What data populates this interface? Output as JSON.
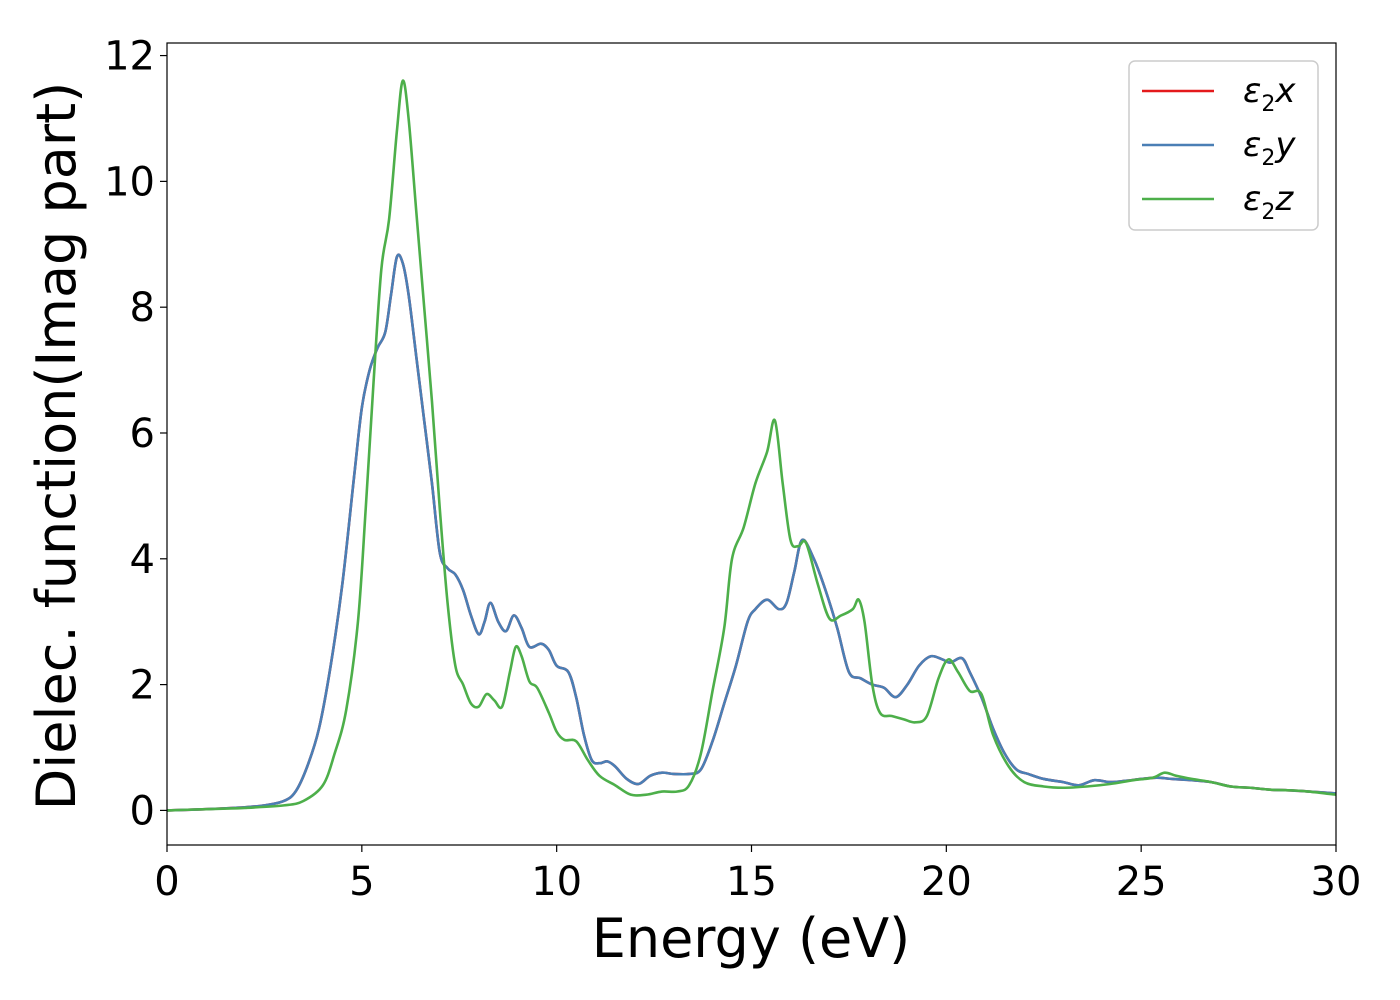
{
  "chart_data": {
    "type": "line",
    "title": "",
    "xlabel": "Energy (eV)",
    "ylabel": "Dielec. function(Imag part)",
    "xlim": [
      0,
      30
    ],
    "ylim": [
      -0.55,
      12.2
    ],
    "xticks": [
      "0",
      "5",
      "10",
      "15",
      "20",
      "25",
      "30"
    ],
    "yticks": [
      "0",
      "2",
      "4",
      "6",
      "8",
      "10",
      "12"
    ],
    "grid": false,
    "legend_position": "top-right",
    "series": [
      {
        "name": "ε2x",
        "legend": {
          "symbol": "ε",
          "sub": "2",
          "var": "x"
        },
        "color": "#e41a1c",
        "points": [
          [
            0,
            0
          ],
          [
            1,
            0.02
          ],
          [
            2,
            0.05
          ],
          [
            2.5,
            0.08
          ],
          [
            3,
            0.15
          ],
          [
            3.3,
            0.3
          ],
          [
            3.6,
            0.7
          ],
          [
            3.9,
            1.3
          ],
          [
            4.2,
            2.3
          ],
          [
            4.5,
            3.6
          ],
          [
            4.8,
            5.3
          ],
          [
            5.0,
            6.4
          ],
          [
            5.2,
            7.0
          ],
          [
            5.4,
            7.35
          ],
          [
            5.6,
            7.6
          ],
          [
            5.75,
            8.2
          ],
          [
            5.9,
            8.8
          ],
          [
            6.05,
            8.7
          ],
          [
            6.2,
            8.2
          ],
          [
            6.4,
            7.2
          ],
          [
            6.6,
            6.2
          ],
          [
            6.8,
            5.2
          ],
          [
            7.0,
            4.1
          ],
          [
            7.2,
            3.85
          ],
          [
            7.4,
            3.75
          ],
          [
            7.6,
            3.5
          ],
          [
            7.8,
            3.1
          ],
          [
            8.0,
            2.8
          ],
          [
            8.15,
            3.0
          ],
          [
            8.3,
            3.3
          ],
          [
            8.5,
            3.0
          ],
          [
            8.7,
            2.85
          ],
          [
            8.9,
            3.1
          ],
          [
            9.1,
            2.9
          ],
          [
            9.3,
            2.6
          ],
          [
            9.6,
            2.65
          ],
          [
            9.8,
            2.55
          ],
          [
            10.0,
            2.3
          ],
          [
            10.3,
            2.2
          ],
          [
            10.5,
            1.8
          ],
          [
            10.7,
            1.2
          ],
          [
            10.9,
            0.8
          ],
          [
            11.1,
            0.75
          ],
          [
            11.3,
            0.78
          ],
          [
            11.5,
            0.7
          ],
          [
            11.8,
            0.5
          ],
          [
            12.1,
            0.42
          ],
          [
            12.4,
            0.55
          ],
          [
            12.7,
            0.6
          ],
          [
            13.0,
            0.58
          ],
          [
            13.4,
            0.58
          ],
          [
            13.7,
            0.65
          ],
          [
            14.0,
            1.1
          ],
          [
            14.3,
            1.7
          ],
          [
            14.6,
            2.3
          ],
          [
            14.9,
            3.0
          ],
          [
            15.1,
            3.2
          ],
          [
            15.4,
            3.35
          ],
          [
            15.7,
            3.2
          ],
          [
            15.9,
            3.3
          ],
          [
            16.1,
            3.8
          ],
          [
            16.3,
            4.3
          ],
          [
            16.6,
            4.0
          ],
          [
            16.9,
            3.5
          ],
          [
            17.2,
            2.9
          ],
          [
            17.5,
            2.2
          ],
          [
            17.8,
            2.1
          ],
          [
            18.1,
            2.0
          ],
          [
            18.4,
            1.95
          ],
          [
            18.7,
            1.8
          ],
          [
            19.0,
            2.0
          ],
          [
            19.3,
            2.3
          ],
          [
            19.6,
            2.45
          ],
          [
            19.9,
            2.4
          ],
          [
            20.1,
            2.35
          ],
          [
            20.4,
            2.42
          ],
          [
            20.6,
            2.2
          ],
          [
            20.9,
            1.8
          ],
          [
            21.2,
            1.3
          ],
          [
            21.5,
            0.9
          ],
          [
            21.8,
            0.65
          ],
          [
            22.1,
            0.58
          ],
          [
            22.5,
            0.5
          ],
          [
            23.0,
            0.45
          ],
          [
            23.4,
            0.4
          ],
          [
            23.8,
            0.48
          ],
          [
            24.2,
            0.45
          ],
          [
            24.6,
            0.47
          ],
          [
            25.0,
            0.5
          ],
          [
            25.4,
            0.52
          ],
          [
            25.8,
            0.5
          ],
          [
            26.3,
            0.48
          ],
          [
            26.8,
            0.45
          ],
          [
            27.3,
            0.38
          ],
          [
            27.8,
            0.36
          ],
          [
            28.3,
            0.33
          ],
          [
            28.8,
            0.32
          ],
          [
            29.3,
            0.3
          ],
          [
            30,
            0.27
          ]
        ]
      },
      {
        "name": "ε2y",
        "legend": {
          "symbol": "ε",
          "sub": "2",
          "var": "y"
        },
        "color": "#4a7fb5",
        "points": [
          [
            0,
            0
          ],
          [
            1,
            0.02
          ],
          [
            2,
            0.05
          ],
          [
            2.5,
            0.08
          ],
          [
            3,
            0.15
          ],
          [
            3.3,
            0.3
          ],
          [
            3.6,
            0.7
          ],
          [
            3.9,
            1.3
          ],
          [
            4.2,
            2.3
          ],
          [
            4.5,
            3.6
          ],
          [
            4.8,
            5.3
          ],
          [
            5.0,
            6.4
          ],
          [
            5.2,
            7.0
          ],
          [
            5.4,
            7.35
          ],
          [
            5.6,
            7.6
          ],
          [
            5.75,
            8.2
          ],
          [
            5.9,
            8.8
          ],
          [
            6.05,
            8.7
          ],
          [
            6.2,
            8.2
          ],
          [
            6.4,
            7.2
          ],
          [
            6.6,
            6.2
          ],
          [
            6.8,
            5.2
          ],
          [
            7.0,
            4.1
          ],
          [
            7.2,
            3.85
          ],
          [
            7.4,
            3.75
          ],
          [
            7.6,
            3.5
          ],
          [
            7.8,
            3.1
          ],
          [
            8.0,
            2.8
          ],
          [
            8.15,
            3.0
          ],
          [
            8.3,
            3.3
          ],
          [
            8.5,
            3.0
          ],
          [
            8.7,
            2.85
          ],
          [
            8.9,
            3.1
          ],
          [
            9.1,
            2.9
          ],
          [
            9.3,
            2.6
          ],
          [
            9.6,
            2.65
          ],
          [
            9.8,
            2.55
          ],
          [
            10.0,
            2.3
          ],
          [
            10.3,
            2.2
          ],
          [
            10.5,
            1.8
          ],
          [
            10.7,
            1.2
          ],
          [
            10.9,
            0.8
          ],
          [
            11.1,
            0.75
          ],
          [
            11.3,
            0.78
          ],
          [
            11.5,
            0.7
          ],
          [
            11.8,
            0.5
          ],
          [
            12.1,
            0.42
          ],
          [
            12.4,
            0.55
          ],
          [
            12.7,
            0.6
          ],
          [
            13.0,
            0.58
          ],
          [
            13.4,
            0.58
          ],
          [
            13.7,
            0.65
          ],
          [
            14.0,
            1.1
          ],
          [
            14.3,
            1.7
          ],
          [
            14.6,
            2.3
          ],
          [
            14.9,
            3.0
          ],
          [
            15.1,
            3.2
          ],
          [
            15.4,
            3.35
          ],
          [
            15.7,
            3.2
          ],
          [
            15.9,
            3.3
          ],
          [
            16.1,
            3.8
          ],
          [
            16.3,
            4.3
          ],
          [
            16.6,
            4.0
          ],
          [
            16.9,
            3.5
          ],
          [
            17.2,
            2.9
          ],
          [
            17.5,
            2.2
          ],
          [
            17.8,
            2.1
          ],
          [
            18.1,
            2.0
          ],
          [
            18.4,
            1.95
          ],
          [
            18.7,
            1.8
          ],
          [
            19.0,
            2.0
          ],
          [
            19.3,
            2.3
          ],
          [
            19.6,
            2.45
          ],
          [
            19.9,
            2.4
          ],
          [
            20.1,
            2.35
          ],
          [
            20.4,
            2.42
          ],
          [
            20.6,
            2.2
          ],
          [
            20.9,
            1.8
          ],
          [
            21.2,
            1.3
          ],
          [
            21.5,
            0.9
          ],
          [
            21.8,
            0.65
          ],
          [
            22.1,
            0.58
          ],
          [
            22.5,
            0.5
          ],
          [
            23.0,
            0.45
          ],
          [
            23.4,
            0.4
          ],
          [
            23.8,
            0.48
          ],
          [
            24.2,
            0.45
          ],
          [
            24.6,
            0.47
          ],
          [
            25.0,
            0.5
          ],
          [
            25.4,
            0.52
          ],
          [
            25.8,
            0.5
          ],
          [
            26.3,
            0.48
          ],
          [
            26.8,
            0.45
          ],
          [
            27.3,
            0.38
          ],
          [
            27.8,
            0.36
          ],
          [
            28.3,
            0.33
          ],
          [
            28.8,
            0.32
          ],
          [
            29.3,
            0.3
          ],
          [
            30,
            0.27
          ]
        ]
      },
      {
        "name": "ε2z",
        "legend": {
          "symbol": "ε",
          "sub": "2",
          "var": "z"
        },
        "color": "#4daf4a",
        "points": [
          [
            0,
            0
          ],
          [
            1,
            0.02
          ],
          [
            2,
            0.04
          ],
          [
            3,
            0.08
          ],
          [
            3.5,
            0.15
          ],
          [
            4.0,
            0.4
          ],
          [
            4.3,
            0.9
          ],
          [
            4.6,
            1.6
          ],
          [
            4.9,
            3.0
          ],
          [
            5.1,
            4.8
          ],
          [
            5.3,
            6.8
          ],
          [
            5.5,
            8.6
          ],
          [
            5.7,
            9.4
          ],
          [
            5.9,
            10.8
          ],
          [
            6.05,
            11.6
          ],
          [
            6.2,
            11.0
          ],
          [
            6.4,
            9.5
          ],
          [
            6.6,
            8.0
          ],
          [
            6.8,
            6.5
          ],
          [
            7.0,
            4.8
          ],
          [
            7.2,
            3.3
          ],
          [
            7.4,
            2.3
          ],
          [
            7.6,
            2.0
          ],
          [
            7.8,
            1.7
          ],
          [
            8.0,
            1.65
          ],
          [
            8.2,
            1.85
          ],
          [
            8.4,
            1.75
          ],
          [
            8.6,
            1.65
          ],
          [
            8.8,
            2.2
          ],
          [
            8.95,
            2.6
          ],
          [
            9.1,
            2.45
          ],
          [
            9.3,
            2.05
          ],
          [
            9.5,
            1.95
          ],
          [
            9.8,
            1.55
          ],
          [
            10.0,
            1.25
          ],
          [
            10.2,
            1.12
          ],
          [
            10.5,
            1.1
          ],
          [
            10.8,
            0.8
          ],
          [
            11.1,
            0.55
          ],
          [
            11.5,
            0.4
          ],
          [
            11.9,
            0.25
          ],
          [
            12.3,
            0.25
          ],
          [
            12.7,
            0.3
          ],
          [
            13.1,
            0.3
          ],
          [
            13.4,
            0.4
          ],
          [
            13.7,
            0.9
          ],
          [
            14.0,
            1.9
          ],
          [
            14.3,
            2.9
          ],
          [
            14.5,
            4.0
          ],
          [
            14.8,
            4.5
          ],
          [
            15.1,
            5.2
          ],
          [
            15.4,
            5.7
          ],
          [
            15.6,
            6.2
          ],
          [
            15.8,
            5.2
          ],
          [
            16.0,
            4.3
          ],
          [
            16.2,
            4.2
          ],
          [
            16.4,
            4.25
          ],
          [
            16.7,
            3.6
          ],
          [
            17.0,
            3.05
          ],
          [
            17.3,
            3.1
          ],
          [
            17.6,
            3.2
          ],
          [
            17.75,
            3.35
          ],
          [
            17.9,
            3.0
          ],
          [
            18.1,
            2.0
          ],
          [
            18.3,
            1.55
          ],
          [
            18.6,
            1.5
          ],
          [
            18.9,
            1.45
          ],
          [
            19.2,
            1.4
          ],
          [
            19.5,
            1.5
          ],
          [
            19.8,
            2.1
          ],
          [
            20.05,
            2.4
          ],
          [
            20.3,
            2.2
          ],
          [
            20.6,
            1.9
          ],
          [
            20.9,
            1.85
          ],
          [
            21.2,
            1.2
          ],
          [
            21.6,
            0.7
          ],
          [
            22.0,
            0.45
          ],
          [
            22.5,
            0.38
          ],
          [
            23.0,
            0.36
          ],
          [
            23.6,
            0.38
          ],
          [
            24.2,
            0.42
          ],
          [
            24.8,
            0.48
          ],
          [
            25.3,
            0.52
          ],
          [
            25.6,
            0.6
          ],
          [
            25.9,
            0.55
          ],
          [
            26.3,
            0.5
          ],
          [
            26.8,
            0.45
          ],
          [
            27.3,
            0.38
          ],
          [
            27.8,
            0.36
          ],
          [
            28.3,
            0.33
          ],
          [
            28.8,
            0.32
          ],
          [
            29.3,
            0.3
          ],
          [
            30,
            0.25
          ]
        ]
      }
    ]
  }
}
